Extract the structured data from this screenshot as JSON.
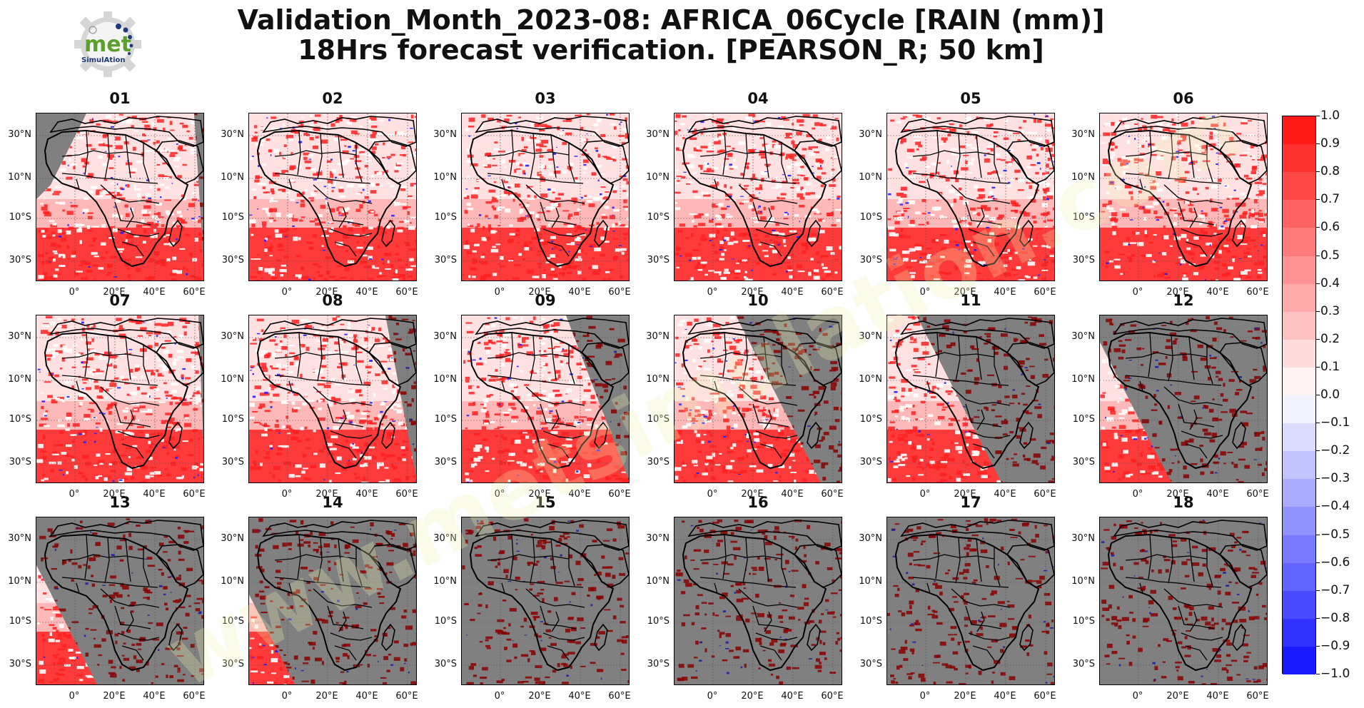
{
  "header": {
    "title_line1": "Validation_Month_2023-08: AFRICA_06Cycle [RAIN (mm)]",
    "title_line2": "18Hrs forecast verification.  [PEARSON_R; 50 km]"
  },
  "logo": {
    "text_main": "met",
    "text_sub": "SimulAtion",
    "colors": {
      "green": "#5aa02c",
      "navy": "#1f3a7a",
      "gear": "#d0d0d0"
    }
  },
  "watermark": {
    "text": "www.metsimulation.com"
  },
  "map_axes": {
    "lat_labels": [
      "30°N",
      "10°N",
      "10°S",
      "30°S"
    ],
    "lon_labels": [
      "0°",
      "20°E",
      "40°E",
      "60°E"
    ]
  },
  "panels": [
    {
      "label": "01",
      "no_data_fraction": 0.05,
      "corr_level": 0.55
    },
    {
      "label": "02",
      "no_data_fraction": 0.0,
      "corr_level": 0.55
    },
    {
      "label": "03",
      "no_data_fraction": 0.0,
      "corr_level": 0.55
    },
    {
      "label": "04",
      "no_data_fraction": 0.0,
      "corr_level": 0.6
    },
    {
      "label": "05",
      "no_data_fraction": 0.0,
      "corr_level": 0.55
    },
    {
      "label": "06",
      "no_data_fraction": 0.0,
      "corr_level": 0.55
    },
    {
      "label": "07",
      "no_data_fraction": 0.03,
      "corr_level": 0.6
    },
    {
      "label": "08",
      "no_data_fraction": 0.15,
      "corr_level": 0.55
    },
    {
      "label": "09",
      "no_data_fraction": 0.3,
      "corr_level": 0.55
    },
    {
      "label": "10",
      "no_data_fraction": 0.5,
      "corr_level": 0.55
    },
    {
      "label": "11",
      "no_data_fraction": 0.65,
      "corr_level": 0.55
    },
    {
      "label": "12",
      "no_data_fraction": 0.85,
      "corr_level": 0.55
    },
    {
      "label": "13",
      "no_data_fraction": 0.9,
      "corr_level": 0.55
    },
    {
      "label": "14",
      "no_data_fraction": 0.97,
      "corr_level": 0.55
    },
    {
      "label": "15",
      "no_data_fraction": 1.0,
      "corr_level": 0.55
    },
    {
      "label": "16",
      "no_data_fraction": 1.0,
      "corr_level": 0.55
    },
    {
      "label": "17",
      "no_data_fraction": 1.0,
      "corr_level": 0.55
    },
    {
      "label": "18",
      "no_data_fraction": 1.0,
      "corr_level": 0.55
    }
  ],
  "colorbar": {
    "min": -1.0,
    "max": 1.0,
    "step": 0.1,
    "tick_labels": [
      "1.0",
      "0.9",
      "0.8",
      "0.7",
      "0.6",
      "0.5",
      "0.4",
      "0.3",
      "0.2",
      "0.1",
      "0.0",
      "−0.1",
      "−0.2",
      "−0.3",
      "−0.4",
      "−0.5",
      "−0.6",
      "−0.7",
      "−0.8",
      "−0.9",
      "−1.0"
    ],
    "colors": {
      "positive": "#ff0000",
      "negative": "#0000ff",
      "neutral": "#ffffff",
      "no_data": "#808080"
    }
  }
}
